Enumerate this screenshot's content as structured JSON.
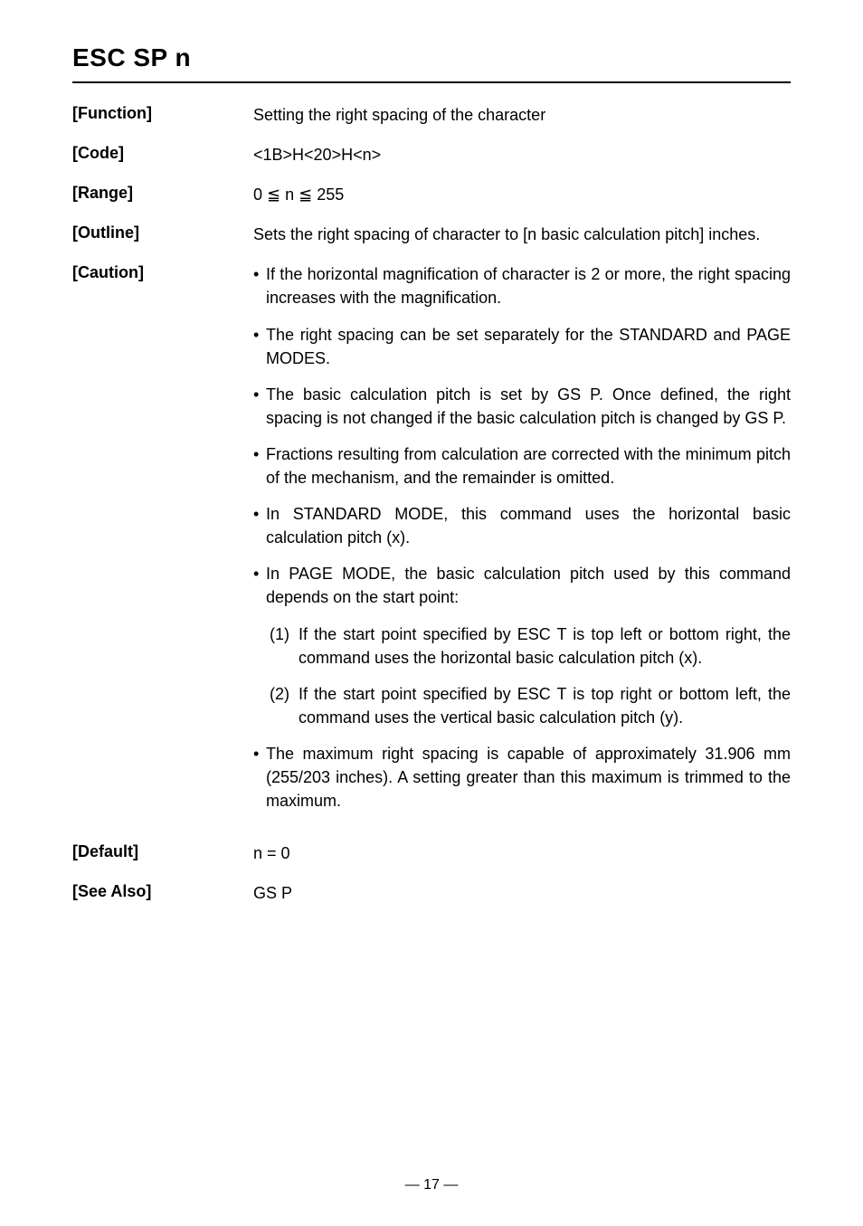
{
  "command_title": "ESC  SP  n",
  "rows": {
    "function": {
      "label": "[Function]",
      "text": "Setting the right spacing of the character"
    },
    "code": {
      "label": "[Code]",
      "text": "<1B>H<20>H<n>"
    },
    "range": {
      "label": "[Range]",
      "text": "0 ≦ n ≦ 255"
    },
    "outline": {
      "label": "[Outline]",
      "text": "Sets the right spacing of character to [n    basic calculation pitch] inches."
    },
    "caution": {
      "label": "[Caution]",
      "bullets": [
        "If the horizontal magnification of character is 2 or more, the right spacing increases with the magnification.",
        "The right spacing can be set separately for the STANDARD and PAGE MODES.",
        "The basic calculation pitch is set by GS P. Once defined, the right spacing is not changed if the basic calculation pitch is changed by GS P.",
        "Fractions resulting from calculation are corrected with the minimum pitch of the mechanism, and the remainder is omitted.",
        "In STANDARD MODE, this command uses the horizontal basic calculation pitch (x).",
        "In PAGE MODE, the basic calculation pitch used by this command depends on the start point:"
      ],
      "numbered": [
        {
          "num": "(1)",
          "text": "If the start point specified by ESC T is top left or bottom right, the command uses the horizontal basic calculation pitch (x)."
        },
        {
          "num": "(2)",
          "text": "If the start point specified by ESC T is top right or bottom left, the command uses the vertical basic calculation pitch (y)."
        }
      ],
      "final_bullet": "The maximum right spacing is capable of approximately 31.906 mm (255/203 inches). A setting greater than this maximum is trimmed to the maximum."
    },
    "default": {
      "label": "[Default]",
      "text": "n = 0"
    },
    "seealso": {
      "label": "[See Also]",
      "text": "GS P"
    }
  },
  "page_number": "— 17 —"
}
